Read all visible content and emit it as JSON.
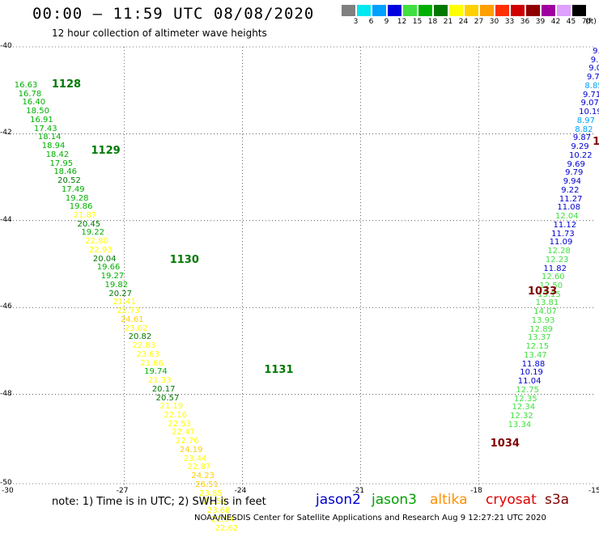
{
  "title": "00:00 – 11:59 UTC 08/08/2020",
  "subtitle": "12 hour collection of altimeter wave heights",
  "legend": {
    "unit": "(ft)",
    "bins": [
      {
        "label": "3",
        "color": "#808080"
      },
      {
        "label": "6",
        "color": "#00e8f0"
      },
      {
        "label": "9",
        "color": "#00a0ff"
      },
      {
        "label": "12",
        "color": "#0000e0"
      },
      {
        "label": "15",
        "color": "#40e040"
      },
      {
        "label": "18",
        "color": "#00b000"
      },
      {
        "label": "21",
        "color": "#007800"
      },
      {
        "label": "24",
        "color": "#ffff00"
      },
      {
        "label": "27",
        "color": "#ffd000"
      },
      {
        "label": "30",
        "color": "#ffa000"
      },
      {
        "label": "33",
        "color": "#ff3000"
      },
      {
        "label": "36",
        "color": "#d00000"
      },
      {
        "label": "39",
        "color": "#900000"
      },
      {
        "label": "42",
        "color": "#a000a0"
      },
      {
        "label": "45",
        "color": "#e0a0ff"
      },
      {
        "label": "70",
        "color": "#000000"
      }
    ]
  },
  "axes": {
    "lat_labels": [
      "-40",
      "-42",
      "-44",
      "-46",
      "-48",
      "-50"
    ],
    "lon_labels": [
      "-30",
      "-27",
      "-24",
      "-21",
      "-18",
      "-15"
    ],
    "lon_range": [
      -30,
      -15
    ],
    "lat_range": [
      -50,
      -40
    ]
  },
  "note": "note:  1) Time is in UTC; 2) SWH is in feet",
  "satellites": [
    {
      "name": "jason2",
      "color": "#0000d0"
    },
    {
      "name": "jason3",
      "color": "#00a000"
    },
    {
      "name": "altika",
      "color": "#ff9000"
    },
    {
      "name": "cryosat",
      "color": "#e00000"
    },
    {
      "name": "s3a",
      "color": "#800000"
    }
  ],
  "credit": "NOAA/NESDIS Center for Satellite Applications and Research    Aug  9 12:27:21 UTC 2020",
  "pass_labels": [
    {
      "text": "1128",
      "lon": -28.85,
      "lat": -40.78,
      "color": "#007800"
    },
    {
      "text": "1129",
      "lon": -27.85,
      "lat": -42.3,
      "color": "#007800"
    },
    {
      "text": "1130",
      "lon": -25.85,
      "lat": -44.83,
      "color": "#007800"
    },
    {
      "text": "1131",
      "lon": -23.45,
      "lat": -47.35,
      "color": "#007800"
    },
    {
      "text": "1033",
      "lon": -16.75,
      "lat": -45.55,
      "color": "#800000"
    },
    {
      "text": "1034",
      "lon": -17.7,
      "lat": -49.05,
      "color": "#800000"
    },
    {
      "text": "1",
      "lon": -15.1,
      "lat": -42.1,
      "color": "#800000"
    }
  ],
  "chart_data": {
    "type": "scatter",
    "title": "00:00 – 11:59 UTC 08/08/2020",
    "subtitle": "12 hour collection of altimeter wave heights",
    "x_range": [
      -30,
      -15
    ],
    "y_range": [
      -50,
      -40
    ],
    "tracks": [
      {
        "name": "west",
        "points": [
          {
            "v": "16.63",
            "lon": -29.8,
            "lat": -40.78,
            "c": "#00b000"
          },
          {
            "v": "16.78",
            "lon": -29.7,
            "lat": -40.98,
            "c": "#00b000"
          },
          {
            "v": "16.40",
            "lon": -29.6,
            "lat": -41.18,
            "c": "#00b000"
          },
          {
            "v": "18.50",
            "lon": -29.5,
            "lat": -41.38,
            "c": "#00b000"
          },
          {
            "v": "16.91",
            "lon": -29.4,
            "lat": -41.58,
            "c": "#00b000"
          },
          {
            "v": "17.43",
            "lon": -29.3,
            "lat": -41.78,
            "c": "#00b000"
          },
          {
            "v": "18.14",
            "lon": -29.2,
            "lat": -41.98,
            "c": "#00b000"
          },
          {
            "v": "18.94",
            "lon": -29.1,
            "lat": -42.18,
            "c": "#00b000"
          },
          {
            "v": "18.42",
            "lon": -29.0,
            "lat": -42.38,
            "c": "#00b000"
          },
          {
            "v": "17.95",
            "lon": -28.9,
            "lat": -42.58,
            "c": "#00b000"
          },
          {
            "v": "18.46",
            "lon": -28.8,
            "lat": -42.78,
            "c": "#00b000"
          },
          {
            "v": "20.52",
            "lon": -28.7,
            "lat": -42.98,
            "c": "#007800"
          },
          {
            "v": "17.49",
            "lon": -28.6,
            "lat": -43.18,
            "c": "#00b000"
          },
          {
            "v": "19.28",
            "lon": -28.5,
            "lat": -43.38,
            "c": "#00b000"
          },
          {
            "v": "19.86",
            "lon": -28.4,
            "lat": -43.58,
            "c": "#00b000"
          },
          {
            "v": "21.87",
            "lon": -28.3,
            "lat": -43.78,
            "c": "#ffff00"
          },
          {
            "v": "20.45",
            "lon": -28.2,
            "lat": -43.98,
            "c": "#007800"
          },
          {
            "v": "19.22",
            "lon": -28.1,
            "lat": -44.18,
            "c": "#00b000"
          },
          {
            "v": "22.80",
            "lon": -28.0,
            "lat": -44.38,
            "c": "#ffff00"
          },
          {
            "v": "22.93",
            "lon": -27.9,
            "lat": -44.58,
            "c": "#ffff00"
          },
          {
            "v": "20.04",
            "lon": -27.8,
            "lat": -44.78,
            "c": "#007800"
          },
          {
            "v": "19.66",
            "lon": -27.7,
            "lat": -44.98,
            "c": "#00b000"
          },
          {
            "v": "19.27",
            "lon": -27.6,
            "lat": -45.18,
            "c": "#00b000"
          },
          {
            "v": "19.82",
            "lon": -27.5,
            "lat": -45.38,
            "c": "#00b000"
          },
          {
            "v": "20.27",
            "lon": -27.4,
            "lat": -45.58,
            "c": "#007800"
          },
          {
            "v": "21.41",
            "lon": -27.3,
            "lat": -45.78,
            "c": "#ffff00"
          },
          {
            "v": "22.73",
            "lon": -27.2,
            "lat": -45.98,
            "c": "#ffff00"
          },
          {
            "v": "24.61",
            "lon": -27.1,
            "lat": -46.18,
            "c": "#ffd000"
          },
          {
            "v": "23.02",
            "lon": -27.0,
            "lat": -46.38,
            "c": "#ffff00"
          },
          {
            "v": "20.82",
            "lon": -26.9,
            "lat": -46.58,
            "c": "#007800"
          },
          {
            "v": "22.83",
            "lon": -26.8,
            "lat": -46.78,
            "c": "#ffff00"
          },
          {
            "v": "23.63",
            "lon": -26.7,
            "lat": -46.98,
            "c": "#ffff00"
          },
          {
            "v": "21.66",
            "lon": -26.6,
            "lat": -47.18,
            "c": "#ffff00"
          },
          {
            "v": "19.74",
            "lon": -26.5,
            "lat": -47.38,
            "c": "#00b000"
          },
          {
            "v": "21.33",
            "lon": -26.4,
            "lat": -47.58,
            "c": "#ffff00"
          },
          {
            "v": "20.17",
            "lon": -26.3,
            "lat": -47.78,
            "c": "#007800"
          },
          {
            "v": "20.57",
            "lon": -26.2,
            "lat": -47.98,
            "c": "#007800"
          },
          {
            "v": "21.19",
            "lon": -26.1,
            "lat": -48.18,
            "c": "#ffff00"
          },
          {
            "v": "22.16",
            "lon": -26.0,
            "lat": -48.38,
            "c": "#ffff00"
          },
          {
            "v": "22.53",
            "lon": -25.9,
            "lat": -48.58,
            "c": "#ffff00"
          },
          {
            "v": "22.47",
            "lon": -25.8,
            "lat": -48.78,
            "c": "#ffff00"
          },
          {
            "v": "22.76",
            "lon": -25.7,
            "lat": -48.98,
            "c": "#ffff00"
          },
          {
            "v": "24.19",
            "lon": -25.6,
            "lat": -49.18,
            "c": "#ffd000"
          },
          {
            "v": "23.44",
            "lon": -25.5,
            "lat": -49.38,
            "c": "#ffff00"
          },
          {
            "v": "22.87",
            "lon": -25.4,
            "lat": -49.58,
            "c": "#ffff00"
          },
          {
            "v": "24.23",
            "lon": -25.3,
            "lat": -49.78,
            "c": "#ffd000"
          },
          {
            "v": "26.51",
            "lon": -25.2,
            "lat": -49.98,
            "c": "#ffd000"
          },
          {
            "v": "23.85",
            "lon": -25.1,
            "lat": -50.18,
            "c": "#ffff00"
          },
          {
            "v": "21.59",
            "lon": -25.0,
            "lat": -50.38,
            "c": "#ffff00"
          },
          {
            "v": "23.68",
            "lon": -24.9,
            "lat": -50.58,
            "c": "#ffff00"
          },
          {
            "v": "22.94",
            "lon": -24.8,
            "lat": -50.78,
            "c": "#ffff00"
          },
          {
            "v": "22.62",
            "lon": -24.7,
            "lat": -50.98,
            "c": "#ffff00"
          }
        ]
      },
      {
        "name": "east",
        "points": [
          {
            "v": "9.",
            "lon": -15.1,
            "lat": -40.0,
            "c": "#0000d0"
          },
          {
            "v": "9.",
            "lon": -15.15,
            "lat": -40.2,
            "c": "#0000d0"
          },
          {
            "v": "9.0",
            "lon": -15.2,
            "lat": -40.4,
            "c": "#0000d0"
          },
          {
            "v": "9.7",
            "lon": -15.25,
            "lat": -40.6,
            "c": "#0000d0"
          },
          {
            "v": "8.85",
            "lon": -15.3,
            "lat": -40.8,
            "c": "#00a0ff"
          },
          {
            "v": "9.71",
            "lon": -15.35,
            "lat": -41.0,
            "c": "#0000d0"
          },
          {
            "v": "9.07",
            "lon": -15.4,
            "lat": -41.2,
            "c": "#0000d0"
          },
          {
            "v": "10.19",
            "lon": -15.45,
            "lat": -41.4,
            "c": "#0000d0"
          },
          {
            "v": "8.97",
            "lon": -15.5,
            "lat": -41.6,
            "c": "#00a0ff"
          },
          {
            "v": "8.82",
            "lon": -15.55,
            "lat": -41.8,
            "c": "#00a0ff"
          },
          {
            "v": "9.87",
            "lon": -15.6,
            "lat": -42.0,
            "c": "#0000d0"
          },
          {
            "v": "9.29",
            "lon": -15.65,
            "lat": -42.2,
            "c": "#0000d0"
          },
          {
            "v": "10.22",
            "lon": -15.7,
            "lat": -42.4,
            "c": "#0000d0"
          },
          {
            "v": "9.69",
            "lon": -15.75,
            "lat": -42.6,
            "c": "#0000d0"
          },
          {
            "v": "9.79",
            "lon": -15.8,
            "lat": -42.8,
            "c": "#0000d0"
          },
          {
            "v": "9.94",
            "lon": -15.85,
            "lat": -43.0,
            "c": "#0000d0"
          },
          {
            "v": "9.22",
            "lon": -15.9,
            "lat": -43.2,
            "c": "#0000d0"
          },
          {
            "v": "11.27",
            "lon": -15.95,
            "lat": -43.4,
            "c": "#0000d0"
          },
          {
            "v": "11.08",
            "lon": -16.0,
            "lat": -43.6,
            "c": "#0000d0"
          },
          {
            "v": "12.04",
            "lon": -16.05,
            "lat": -43.8,
            "c": "#40e040"
          },
          {
            "v": "11.12",
            "lon": -16.1,
            "lat": -44.0,
            "c": "#0000d0"
          },
          {
            "v": "11.73",
            "lon": -16.15,
            "lat": -44.2,
            "c": "#0000d0"
          },
          {
            "v": "11.09",
            "lon": -16.2,
            "lat": -44.4,
            "c": "#0000d0"
          },
          {
            "v": "12.28",
            "lon": -16.25,
            "lat": -44.6,
            "c": "#40e040"
          },
          {
            "v": "12.23",
            "lon": -16.3,
            "lat": -44.8,
            "c": "#40e040"
          },
          {
            "v": "11.82",
            "lon": -16.35,
            "lat": -45.0,
            "c": "#0000d0"
          },
          {
            "v": "12.60",
            "lon": -16.4,
            "lat": -45.2,
            "c": "#40e040"
          },
          {
            "v": "12.50",
            "lon": -16.45,
            "lat": -45.4,
            "c": "#40e040"
          },
          {
            "v": "13.15",
            "lon": -16.5,
            "lat": -45.6,
            "c": "#40e040"
          },
          {
            "v": "13.81",
            "lon": -16.55,
            "lat": -45.8,
            "c": "#40e040"
          },
          {
            "v": "14.07",
            "lon": -16.6,
            "lat": -46.0,
            "c": "#40e040"
          },
          {
            "v": "13.93",
            "lon": -16.65,
            "lat": -46.2,
            "c": "#40e040"
          },
          {
            "v": "12.89",
            "lon": -16.7,
            "lat": -46.4,
            "c": "#40e040"
          },
          {
            "v": "13.37",
            "lon": -16.75,
            "lat": -46.6,
            "c": "#40e040"
          },
          {
            "v": "12.15",
            "lon": -16.8,
            "lat": -46.8,
            "c": "#40e040"
          },
          {
            "v": "13.47",
            "lon": -16.85,
            "lat": -47.0,
            "c": "#40e040"
          },
          {
            "v": "11.88",
            "lon": -16.9,
            "lat": -47.2,
            "c": "#0000d0"
          },
          {
            "v": "10.19",
            "lon": -16.95,
            "lat": -47.4,
            "c": "#0000d0"
          },
          {
            "v": "11.04",
            "lon": -17.0,
            "lat": -47.6,
            "c": "#0000d0"
          },
          {
            "v": "12.75",
            "lon": -17.05,
            "lat": -47.8,
            "c": "#40e040"
          },
          {
            "v": "12.35",
            "lon": -17.1,
            "lat": -48.0,
            "c": "#40e040"
          },
          {
            "v": "12.34",
            "lon": -17.15,
            "lat": -48.2,
            "c": "#40e040"
          },
          {
            "v": "12.32",
            "lon": -17.2,
            "lat": -48.4,
            "c": "#40e040"
          },
          {
            "v": "13.34",
            "lon": -17.25,
            "lat": -48.6,
            "c": "#40e040"
          }
        ]
      }
    ]
  }
}
